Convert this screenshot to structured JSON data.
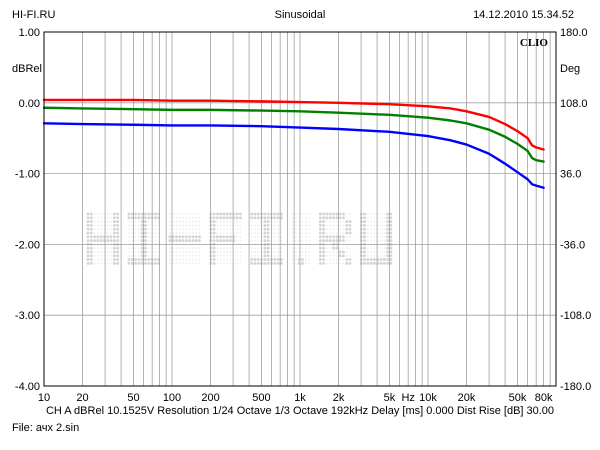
{
  "header": {
    "left": "HI-FI.RU",
    "center": "Sinusoidal",
    "right": "14.12.2010 15.34.52"
  },
  "footer": {
    "line1": "CH A   dBRel 10.1525V   Resolution 1/24 Octave   1/3 Octave   192kHz   Delay [ms] 0.000   Dist Rise [dB] 30.00",
    "line2": "File: ачх 2.sin"
  },
  "colors": {
    "red": "#ff0000",
    "green": "#008000",
    "blue": "#0000ff",
    "grid": "#a0a0a0",
    "watermark": "#d3d3d3"
  },
  "chart_data": {
    "type": "line",
    "xscale": "log",
    "xlim": [
      10,
      100000
    ],
    "ylim": [
      -4,
      1
    ],
    "y2lim": [
      -180,
      180
    ],
    "ylabel": "dBRel",
    "y2label": "Deg",
    "xlabel": "Hz",
    "grid": true,
    "brand_label": "CLIO",
    "watermark": "HI-FI.RU",
    "x_tick_labels": [
      {
        "v": 10,
        "t": "10"
      },
      {
        "v": 20,
        "t": "20"
      },
      {
        "v": 50,
        "t": "50"
      },
      {
        "v": 100,
        "t": "100"
      },
      {
        "v": 200,
        "t": "200"
      },
      {
        "v": 500,
        "t": "500"
      },
      {
        "v": 1000,
        "t": "1k"
      },
      {
        "v": 2000,
        "t": "2k"
      },
      {
        "v": 5000,
        "t": "5k"
      },
      {
        "v": 10000,
        "t": "10k"
      },
      {
        "v": 20000,
        "t": "20k"
      },
      {
        "v": 50000,
        "t": "50k"
      },
      {
        "v": 80000,
        "t": "80k"
      }
    ],
    "y_tick_labels": [
      "1.00",
      "0.00",
      "-1.00",
      "-2.00",
      "-3.00",
      "-4.00"
    ],
    "y2_tick_labels": [
      "180.0",
      "108.0",
      "36.0",
      "-36.0",
      "-108.0",
      "-180.0"
    ],
    "series": [
      {
        "color": "#ff0000",
        "x": [
          10,
          20,
          50,
          100,
          200,
          500,
          1000,
          2000,
          5000,
          10000,
          15000,
          20000,
          30000,
          40000,
          50000,
          60000,
          65000,
          70000,
          80000
        ],
        "y": [
          0.04,
          0.04,
          0.04,
          0.03,
          0.03,
          0.02,
          0.01,
          0.0,
          -0.02,
          -0.05,
          -0.08,
          -0.12,
          -0.2,
          -0.3,
          -0.4,
          -0.5,
          -0.6,
          -0.63,
          -0.66
        ]
      },
      {
        "color": "#008000",
        "x": [
          10,
          20,
          50,
          100,
          200,
          500,
          1000,
          2000,
          5000,
          10000,
          15000,
          20000,
          30000,
          40000,
          50000,
          60000,
          65000,
          70000,
          80000
        ],
        "y": [
          -0.07,
          -0.08,
          -0.09,
          -0.1,
          -0.1,
          -0.11,
          -0.12,
          -0.14,
          -0.17,
          -0.21,
          -0.25,
          -0.29,
          -0.38,
          -0.48,
          -0.58,
          -0.68,
          -0.78,
          -0.81,
          -0.83
        ]
      },
      {
        "color": "#0000ff",
        "x": [
          10,
          20,
          50,
          100,
          200,
          500,
          1000,
          2000,
          5000,
          10000,
          15000,
          20000,
          30000,
          40000,
          50000,
          60000,
          65000,
          70000,
          80000
        ],
        "y": [
          -0.29,
          -0.3,
          -0.31,
          -0.32,
          -0.32,
          -0.33,
          -0.35,
          -0.37,
          -0.41,
          -0.47,
          -0.53,
          -0.59,
          -0.72,
          -0.86,
          -0.98,
          -1.08,
          -1.15,
          -1.17,
          -1.2
        ]
      }
    ]
  }
}
